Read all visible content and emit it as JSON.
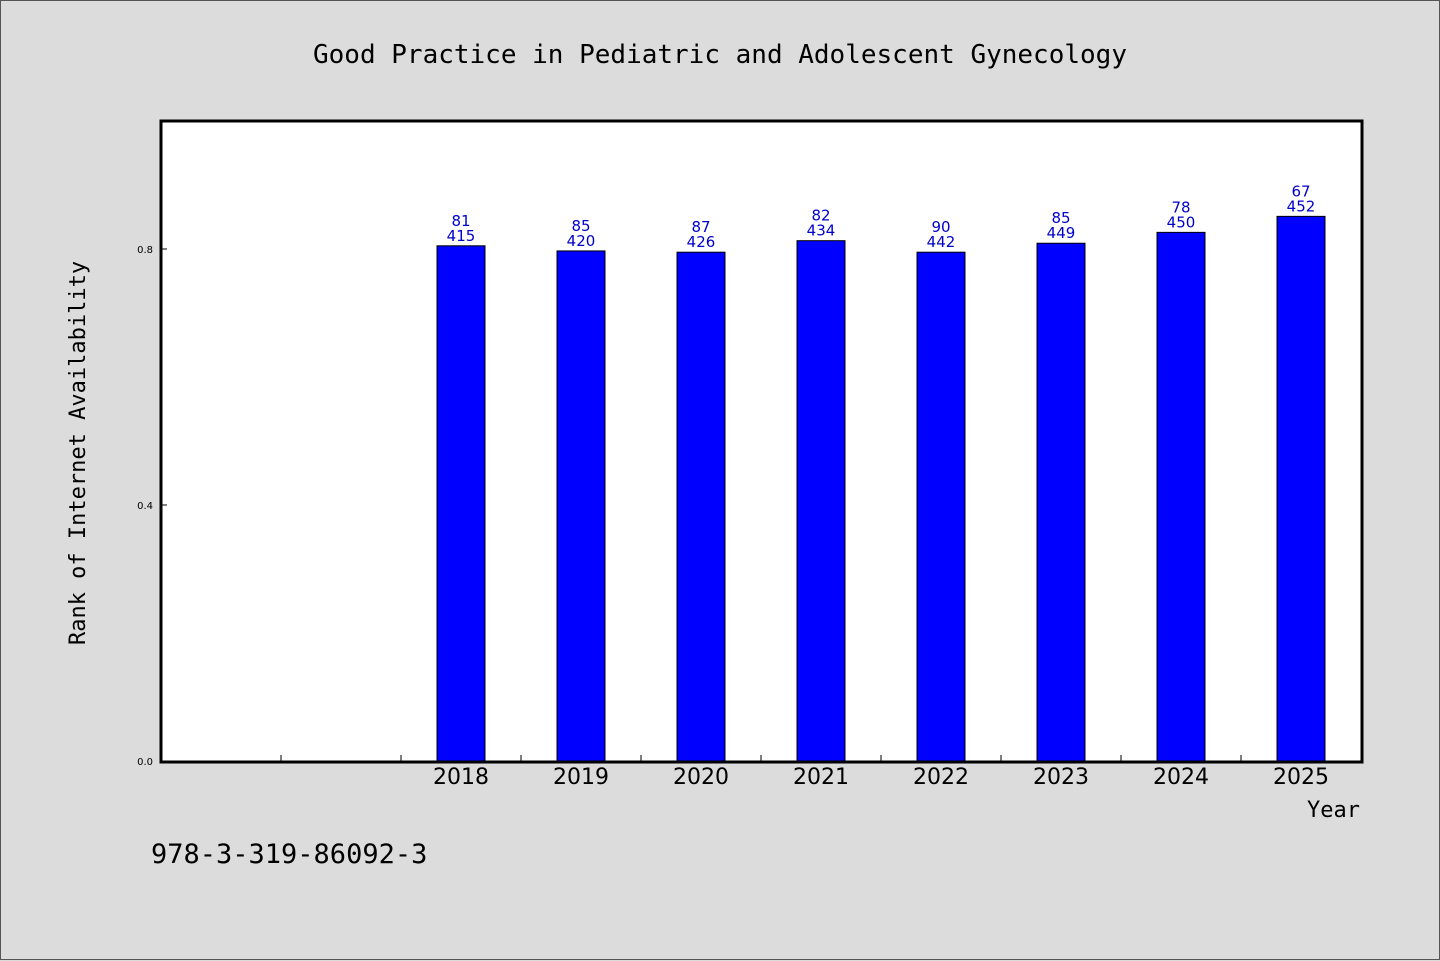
{
  "chart_data": {
    "type": "bar",
    "title": "Good Practice in Pediatric and Adolescent Gynecology",
    "xlabel": "Year",
    "ylabel": "Rank of Internet Availability",
    "categories": [
      "2018",
      "2019",
      "2020",
      "2021",
      "2022",
      "2023",
      "2024",
      "2025"
    ],
    "values": [
      0.805,
      0.797,
      0.795,
      0.813,
      0.795,
      0.809,
      0.826,
      0.851
    ],
    "labels_top": [
      "81",
      "85",
      "87",
      "82",
      "90",
      "85",
      "78",
      "67"
    ],
    "labels_bottom": [
      "415",
      "420",
      "426",
      "434",
      "442",
      "449",
      "450",
      "452"
    ],
    "ylim": [
      0,
      1.0
    ],
    "yticks": [
      "0.0",
      "0.4",
      "0.8"
    ],
    "grid": false,
    "bar_color": "#0000ff",
    "label_color": "#0000cc"
  },
  "footer": {
    "isbn": "978-3-319-86092-3"
  }
}
